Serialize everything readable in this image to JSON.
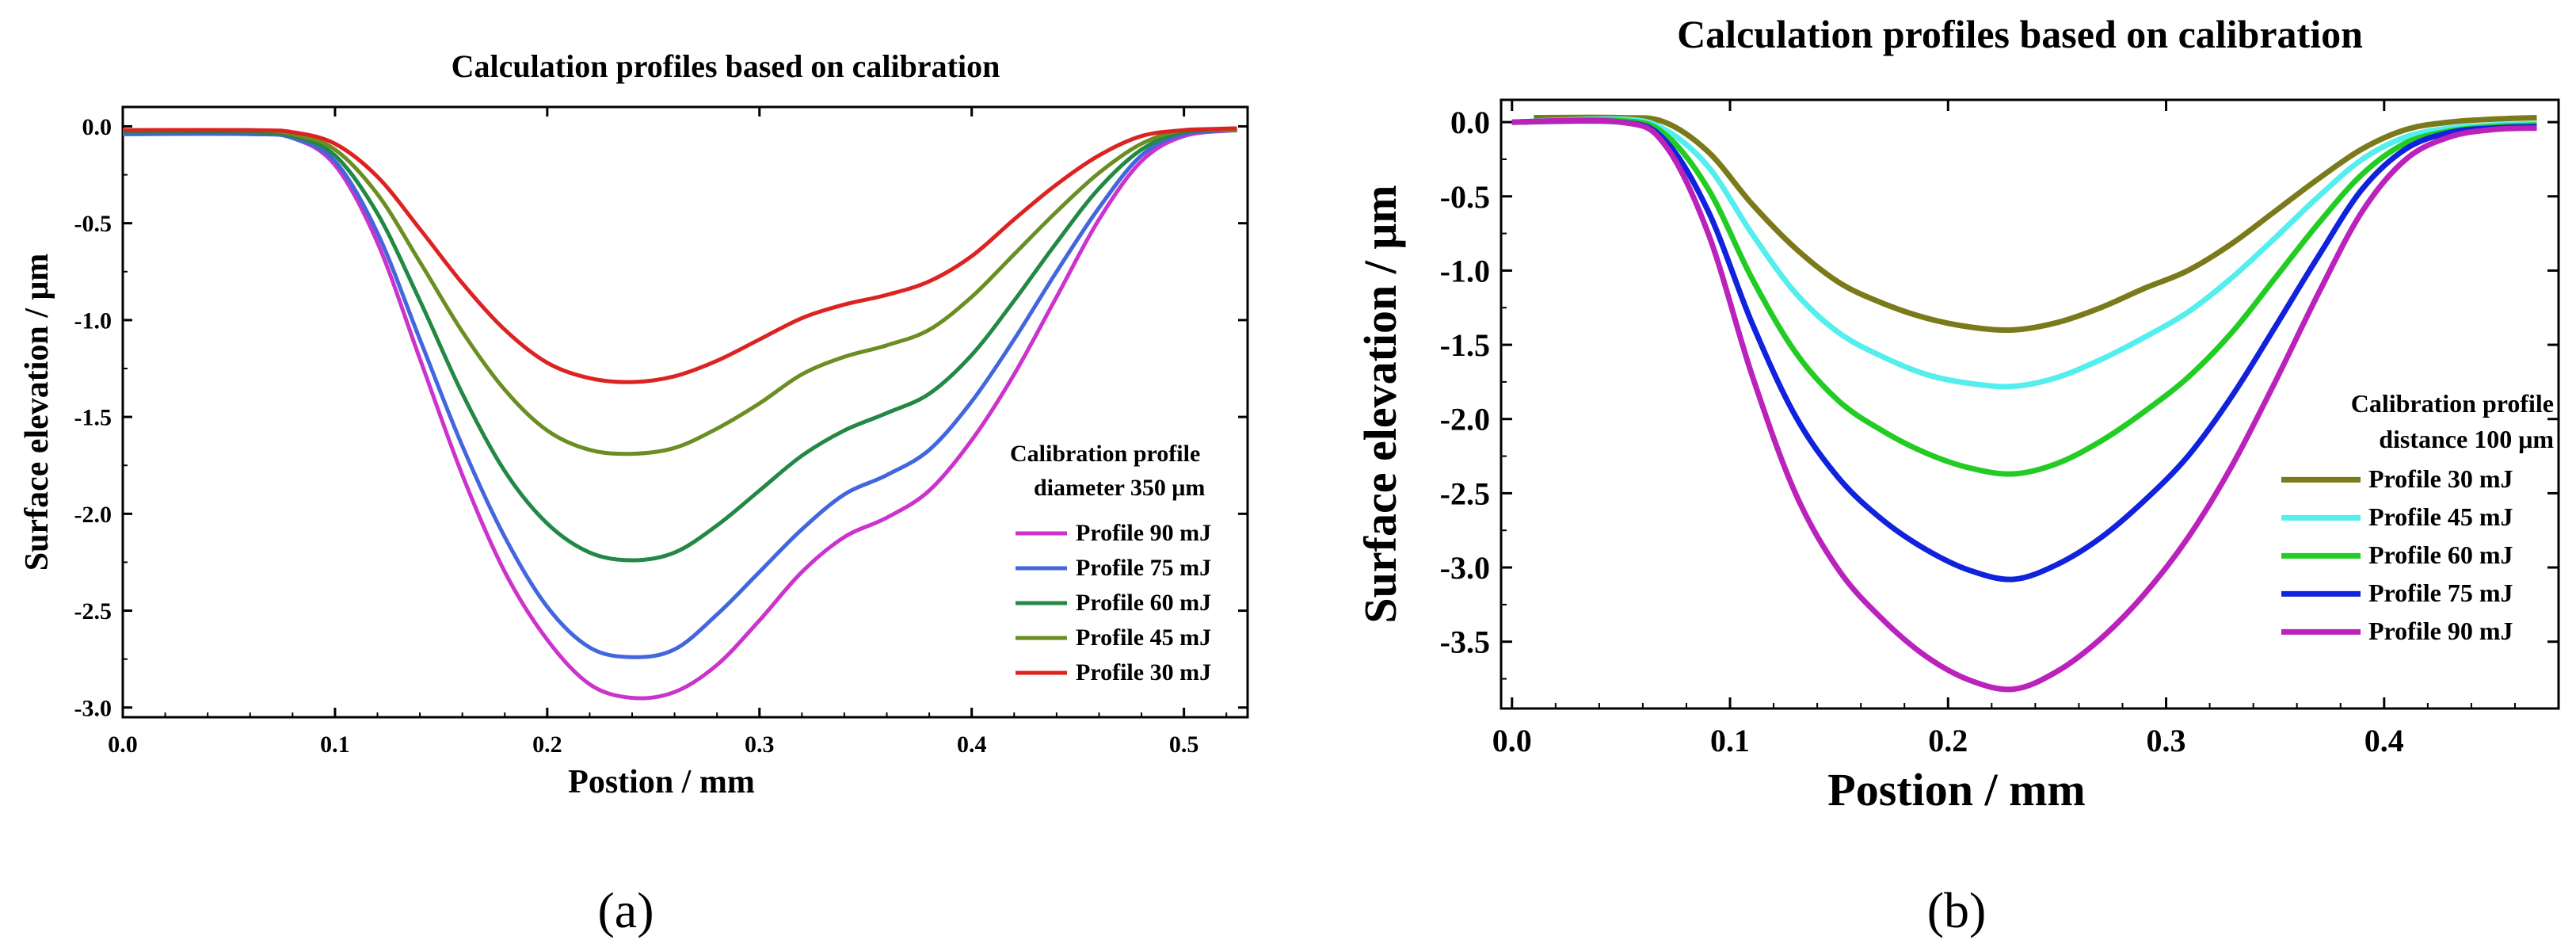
{
  "chart_data": [
    {
      "type": "line",
      "title": "Calculation profiles based on calibration",
      "xlabel": "Postion / mm",
      "ylabel": "Surface elevation / μm",
      "xlim": [
        0,
        0.53
      ],
      "ylim": [
        -3.05,
        0.1
      ],
      "xticks": [
        "0.0",
        "0.1",
        "0.2",
        "0.3",
        "0.4",
        "0.5"
      ],
      "yticks": [
        "0.0",
        "-0.5",
        "-1.0",
        "-1.5",
        "-2.0",
        "-2.5",
        "-3.0"
      ],
      "legend_title": [
        "Calibration profile",
        "diameter 350 μm"
      ],
      "legend_position": "right",
      "panel_label": "(a)",
      "series": [
        {
          "name": "Profile 90 mJ",
          "color": "#cc33cc",
          "x": [
            0,
            0.06,
            0.08,
            0.1,
            0.12,
            0.14,
            0.16,
            0.18,
            0.2,
            0.22,
            0.24,
            0.26,
            0.28,
            0.3,
            0.32,
            0.34,
            0.36,
            0.38,
            0.4,
            0.42,
            0.44,
            0.46,
            0.48,
            0.5,
            0.525
          ],
          "y": [
            -0.04,
            -0.04,
            -0.06,
            -0.2,
            -0.6,
            -1.2,
            -1.8,
            -2.3,
            -2.65,
            -2.88,
            -2.95,
            -2.92,
            -2.78,
            -2.55,
            -2.3,
            -2.12,
            -2.02,
            -1.88,
            -1.62,
            -1.28,
            -0.88,
            -0.48,
            -0.18,
            -0.05,
            -0.02
          ]
        },
        {
          "name": "Profile 75 mJ",
          "color": "#4466dd",
          "x": [
            0,
            0.06,
            0.08,
            0.1,
            0.12,
            0.14,
            0.16,
            0.18,
            0.2,
            0.22,
            0.24,
            0.26,
            0.28,
            0.3,
            0.32,
            0.34,
            0.36,
            0.38,
            0.4,
            0.42,
            0.44,
            0.46,
            0.48,
            0.5,
            0.525
          ],
          "y": [
            -0.04,
            -0.04,
            -0.06,
            -0.18,
            -0.55,
            -1.1,
            -1.65,
            -2.12,
            -2.48,
            -2.69,
            -2.74,
            -2.7,
            -2.52,
            -2.3,
            -2.08,
            -1.9,
            -1.8,
            -1.67,
            -1.42,
            -1.1,
            -0.75,
            -0.42,
            -0.15,
            -0.04,
            -0.02
          ]
        },
        {
          "name": "Profile 60 mJ",
          "color": "#228844",
          "x": [
            0,
            0.06,
            0.08,
            0.1,
            0.12,
            0.14,
            0.16,
            0.18,
            0.2,
            0.22,
            0.24,
            0.26,
            0.28,
            0.3,
            0.32,
            0.34,
            0.36,
            0.38,
            0.4,
            0.42,
            0.44,
            0.46,
            0.48,
            0.5,
            0.525
          ],
          "y": [
            -0.03,
            -0.03,
            -0.05,
            -0.15,
            -0.45,
            -0.9,
            -1.38,
            -1.78,
            -2.05,
            -2.2,
            -2.24,
            -2.2,
            -2.06,
            -1.88,
            -1.7,
            -1.57,
            -1.48,
            -1.38,
            -1.18,
            -0.9,
            -0.6,
            -0.32,
            -0.12,
            -0.03,
            -0.02
          ]
        },
        {
          "name": "Profile 45 mJ",
          "color": "#6b8e23",
          "x": [
            0,
            0.06,
            0.08,
            0.1,
            0.12,
            0.14,
            0.16,
            0.18,
            0.2,
            0.22,
            0.24,
            0.26,
            0.28,
            0.3,
            0.32,
            0.34,
            0.36,
            0.38,
            0.4,
            0.42,
            0.44,
            0.46,
            0.48,
            0.5,
            0.525
          ],
          "y": [
            -0.02,
            -0.02,
            -0.04,
            -0.12,
            -0.35,
            -0.7,
            -1.06,
            -1.36,
            -1.57,
            -1.67,
            -1.69,
            -1.66,
            -1.56,
            -1.43,
            -1.28,
            -1.19,
            -1.13,
            -1.05,
            -0.88,
            -0.66,
            -0.44,
            -0.24,
            -0.09,
            -0.02,
            -0.02
          ]
        },
        {
          "name": "Profile 30 mJ",
          "color": "#dd2222",
          "x": [
            0,
            0.06,
            0.08,
            0.1,
            0.12,
            0.14,
            0.16,
            0.18,
            0.2,
            0.22,
            0.24,
            0.26,
            0.28,
            0.3,
            0.32,
            0.34,
            0.36,
            0.38,
            0.4,
            0.42,
            0.44,
            0.46,
            0.48,
            0.5,
            0.525
          ],
          "y": [
            -0.02,
            -0.02,
            -0.03,
            -0.09,
            -0.26,
            -0.53,
            -0.81,
            -1.05,
            -1.22,
            -1.3,
            -1.32,
            -1.29,
            -1.21,
            -1.1,
            -0.99,
            -0.92,
            -0.87,
            -0.8,
            -0.67,
            -0.48,
            -0.3,
            -0.15,
            -0.05,
            -0.02,
            -0.01
          ]
        }
      ]
    },
    {
      "type": "line",
      "title": "Calculation profiles based on calibration",
      "xlabel": "Postion / mm",
      "ylabel": "Surface elevation / μm",
      "xlim": [
        -0.005,
        0.48
      ],
      "ylim": [
        -3.95,
        0.15
      ],
      "xticks": [
        "0.0",
        "0.1",
        "0.2",
        "0.3",
        "0.4"
      ],
      "yticks": [
        "0.0",
        "-0.5",
        "-1.0",
        "-1.5",
        "-2.0",
        "-2.5",
        "-3.0",
        "-3.5"
      ],
      "legend_title": [
        "Calibration profile",
        "distance 100 μm"
      ],
      "legend_position": "right",
      "panel_label": "(b)",
      "series": [
        {
          "name": "Profile 30 mJ",
          "color": "#7a7a1a",
          "x": [
            0.01,
            0.05,
            0.07,
            0.09,
            0.11,
            0.13,
            0.15,
            0.17,
            0.19,
            0.21,
            0.23,
            0.25,
            0.27,
            0.29,
            0.31,
            0.33,
            0.35,
            0.37,
            0.39,
            0.41,
            0.43,
            0.45,
            0.47
          ],
          "y": [
            0.03,
            0.03,
            0.0,
            -0.2,
            -0.55,
            -0.85,
            -1.08,
            -1.22,
            -1.32,
            -1.38,
            -1.4,
            -1.35,
            -1.25,
            -1.12,
            -1.0,
            -0.82,
            -0.6,
            -0.38,
            -0.18,
            -0.05,
            0.0,
            0.02,
            0.03
          ]
        },
        {
          "name": "Profile 45 mJ",
          "color": "#55eeee",
          "x": [
            0.0,
            0.05,
            0.07,
            0.09,
            0.11,
            0.13,
            0.15,
            0.17,
            0.19,
            0.21,
            0.23,
            0.25,
            0.27,
            0.29,
            0.31,
            0.33,
            0.35,
            0.37,
            0.39,
            0.41,
            0.43,
            0.45,
            0.47
          ],
          "y": [
            0.0,
            0.02,
            -0.05,
            -0.3,
            -0.75,
            -1.15,
            -1.42,
            -1.58,
            -1.7,
            -1.76,
            -1.78,
            -1.72,
            -1.6,
            -1.45,
            -1.28,
            -1.05,
            -0.78,
            -0.5,
            -0.25,
            -0.1,
            -0.04,
            -0.02,
            -0.01
          ]
        },
        {
          "name": "Profile 60 mJ",
          "color": "#22cc22",
          "x": [
            0.0,
            0.05,
            0.07,
            0.09,
            0.11,
            0.13,
            0.15,
            0.17,
            0.19,
            0.21,
            0.23,
            0.25,
            0.27,
            0.29,
            0.31,
            0.33,
            0.35,
            0.37,
            0.39,
            0.41,
            0.43,
            0.45,
            0.47
          ],
          "y": [
            0.0,
            0.01,
            -0.08,
            -0.45,
            -1.05,
            -1.55,
            -1.88,
            -2.08,
            -2.23,
            -2.33,
            -2.37,
            -2.3,
            -2.15,
            -1.95,
            -1.72,
            -1.42,
            -1.05,
            -0.68,
            -0.35,
            -0.14,
            -0.06,
            -0.03,
            -0.02
          ]
        },
        {
          "name": "Profile 75 mJ",
          "color": "#1122dd",
          "x": [
            0.0,
            0.05,
            0.07,
            0.09,
            0.11,
            0.13,
            0.15,
            0.17,
            0.19,
            0.21,
            0.23,
            0.25,
            0.27,
            0.29,
            0.31,
            0.33,
            0.35,
            0.37,
            0.39,
            0.41,
            0.43,
            0.45,
            0.47
          ],
          "y": [
            0.0,
            0.0,
            -0.12,
            -0.6,
            -1.35,
            -1.98,
            -2.4,
            -2.68,
            -2.88,
            -3.02,
            -3.08,
            -2.98,
            -2.8,
            -2.55,
            -2.25,
            -1.85,
            -1.38,
            -0.9,
            -0.45,
            -0.18,
            -0.07,
            -0.04,
            -0.03
          ]
        },
        {
          "name": "Profile 90 mJ",
          "color": "#bb22bb",
          "x": [
            0.0,
            0.05,
            0.07,
            0.09,
            0.11,
            0.13,
            0.15,
            0.17,
            0.19,
            0.21,
            0.23,
            0.25,
            0.27,
            0.29,
            0.31,
            0.33,
            0.35,
            0.37,
            0.39,
            0.41,
            0.43,
            0.45,
            0.47
          ],
          "y": [
            0.0,
            0.0,
            -0.15,
            -0.75,
            -1.7,
            -2.5,
            -3.02,
            -3.35,
            -3.6,
            -3.76,
            -3.82,
            -3.7,
            -3.48,
            -3.18,
            -2.8,
            -2.32,
            -1.75,
            -1.15,
            -0.6,
            -0.25,
            -0.1,
            -0.05,
            -0.04
          ]
        }
      ]
    }
  ]
}
